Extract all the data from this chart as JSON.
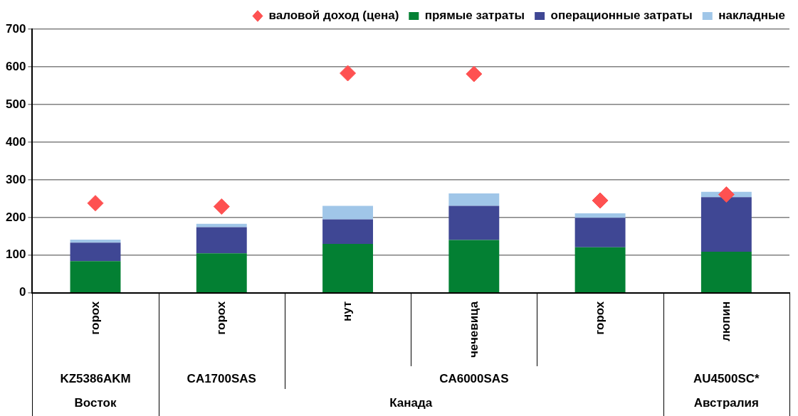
{
  "chart_data": {
    "type": "bar",
    "stacked": true,
    "categories": [
      "горох",
      "горох",
      "нут",
      "чечевица",
      "горох",
      "люпин"
    ],
    "series": [
      {
        "name": "прямые затраты",
        "color": "#038033",
        "values": [
          84,
          105,
          130,
          140,
          121,
          109
        ]
      },
      {
        "name": "операционные затраты",
        "color": "#3f4794",
        "values": [
          49,
          69,
          65,
          91,
          78,
          145
        ]
      },
      {
        "name": "накладные",
        "color": "#a0c6e8",
        "values": [
          8,
          9,
          36,
          33,
          12,
          14
        ]
      },
      {
        "name": "валовой доход (цена)",
        "type": "scatter",
        "marker": "diamond",
        "color": "#fe5151",
        "values": [
          238,
          229,
          583,
          581,
          245,
          261
        ]
      }
    ],
    "ylim": [
      0,
      700
    ],
    "yticks": [
      0,
      100,
      200,
      300,
      400,
      500,
      600,
      700
    ],
    "grid": "y",
    "legend": "top right",
    "annotations": [
      "KZ5386AKM",
      "CA1700SAS",
      "CA6000SAS",
      "AU4500SC*",
      "Восток",
      "Канада",
      "Австралия"
    ]
  }
}
